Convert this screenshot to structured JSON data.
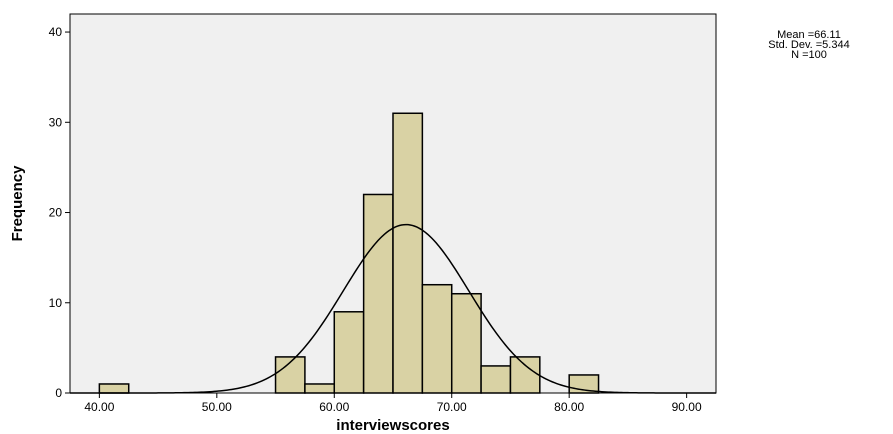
{
  "chart_data": {
    "type": "bar",
    "subtype": "histogram",
    "xlabel": "interviewscores",
    "ylabel": "Frequency",
    "xlim": [
      37.5,
      92.5
    ],
    "ylim": [
      0,
      42
    ],
    "x_ticks": [
      "40.00",
      "50.00",
      "60.00",
      "70.00",
      "80.00",
      "90.00"
    ],
    "x_tick_values": [
      40,
      50,
      60,
      70,
      80,
      90
    ],
    "y_ticks": [
      "0",
      "10",
      "20",
      "30",
      "40"
    ],
    "y_tick_values": [
      0,
      10,
      20,
      30,
      40
    ],
    "bin_width": 2.5,
    "bins": [
      {
        "start": 40.0,
        "end": 42.5,
        "count": 1
      },
      {
        "start": 55.0,
        "end": 57.5,
        "count": 4
      },
      {
        "start": 57.5,
        "end": 60.0,
        "count": 1
      },
      {
        "start": 60.0,
        "end": 62.5,
        "count": 9
      },
      {
        "start": 62.5,
        "end": 65.0,
        "count": 22
      },
      {
        "start": 65.0,
        "end": 67.5,
        "count": 31
      },
      {
        "start": 67.5,
        "end": 70.0,
        "count": 12
      },
      {
        "start": 70.0,
        "end": 72.5,
        "count": 11
      },
      {
        "start": 72.5,
        "end": 75.0,
        "count": 3
      },
      {
        "start": 75.0,
        "end": 77.5,
        "count": 4
      },
      {
        "start": 80.0,
        "end": 82.5,
        "count": 2
      }
    ],
    "normal_curve": {
      "mean": 66.11,
      "std_dev": 5.344,
      "n": 100
    },
    "bar_color": "#d9d2a4",
    "plot_background": "#f0f0f0",
    "grid": false,
    "legend": "none"
  },
  "stats_box": {
    "mean_text": "Mean =66.11",
    "sd_text": "Std. Dev. =5.344",
    "n_text": "N =100"
  }
}
